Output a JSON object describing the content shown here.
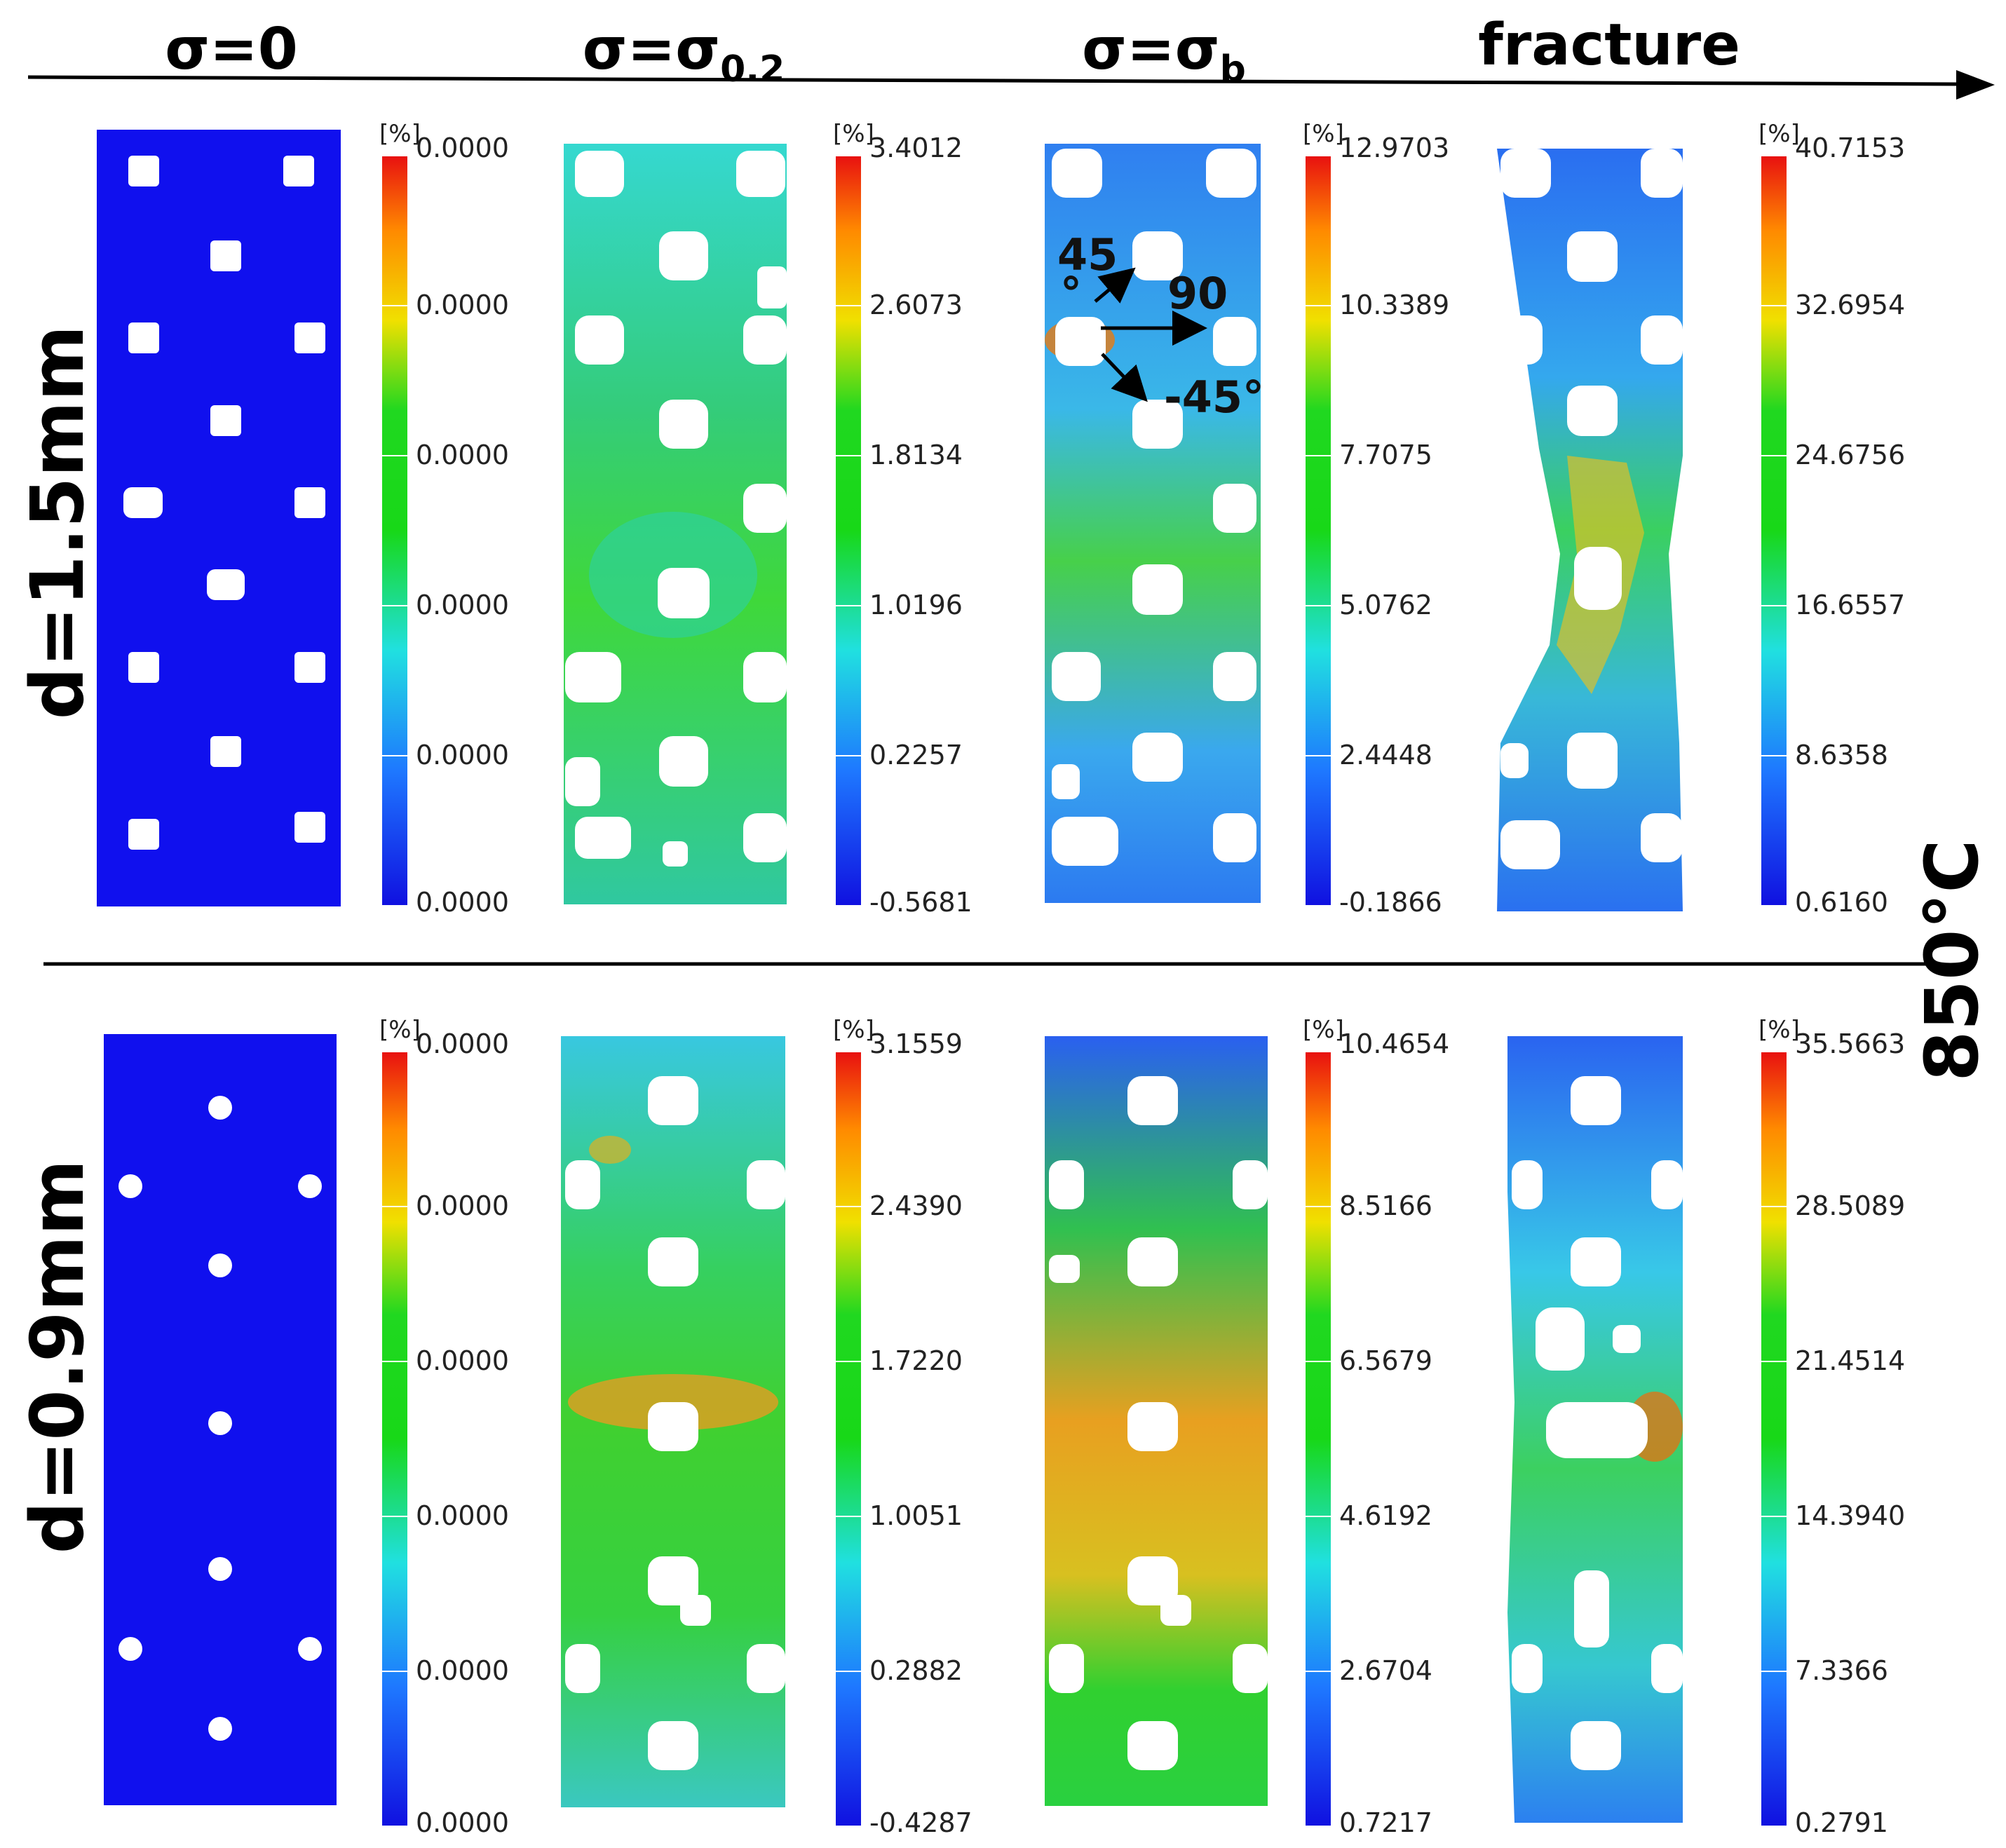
{
  "figure": {
    "columns": [
      "σ=0",
      "σ=σ0.2",
      "σ=σb",
      "fracture"
    ],
    "column_subscripts": [
      "",
      "0.2",
      "b",
      ""
    ],
    "column_bases": [
      "σ=0",
      "σ=σ",
      "σ=σ",
      "fracture"
    ],
    "rows": [
      "d=1.5mm",
      "d=0.9mm"
    ],
    "temperature": "850°C",
    "unit_label": "[%]",
    "annotations": [
      "45",
      "°",
      "90",
      "-45°"
    ]
  },
  "chart_data": {
    "type": "heatmap",
    "title": "",
    "panels": [
      {
        "row": "d=1.5mm",
        "column": "σ=0",
        "unit": "[%]",
        "ticks": [
          "0.0000",
          "0.0000",
          "0.0000",
          "0.0000",
          "0.0000",
          "0.0000"
        ]
      },
      {
        "row": "d=1.5mm",
        "column": "σ=σ0.2",
        "unit": "[%]",
        "ticks": [
          "3.4012",
          "2.6073",
          "1.8134",
          "1.0196",
          "0.2257",
          "-0.5681"
        ]
      },
      {
        "row": "d=1.5mm",
        "column": "σ=σb",
        "unit": "[%]",
        "ticks": [
          "12.9703",
          "10.3389",
          "7.7075",
          "5.0762",
          "2.4448",
          "-0.1866"
        ]
      },
      {
        "row": "d=1.5mm",
        "column": "fracture",
        "unit": "[%]",
        "ticks": [
          "40.7153",
          "32.6954",
          "24.6756",
          "16.6557",
          "8.6358",
          "0.6160"
        ]
      },
      {
        "row": "d=0.9mm",
        "column": "σ=0",
        "unit": "[%]",
        "ticks": [
          "0.0000",
          "0.0000",
          "0.0000",
          "0.0000",
          "0.0000",
          "0.0000"
        ]
      },
      {
        "row": "d=0.9mm",
        "column": "σ=σ0.2",
        "unit": "[%]",
        "ticks": [
          "3.1559",
          "2.4390",
          "1.7220",
          "1.0051",
          "0.2882",
          "-0.4287"
        ]
      },
      {
        "row": "d=0.9mm",
        "column": "σ=σb",
        "unit": "[%]",
        "ticks": [
          "10.4654",
          "8.5166",
          "6.5679",
          "4.6192",
          "2.6704",
          "0.7217"
        ]
      },
      {
        "row": "d=0.9mm",
        "column": "fracture",
        "unit": "[%]",
        "ticks": [
          "35.5663",
          "28.5089",
          "21.4514",
          "14.3940",
          "7.3366",
          "0.2791"
        ]
      }
    ]
  }
}
